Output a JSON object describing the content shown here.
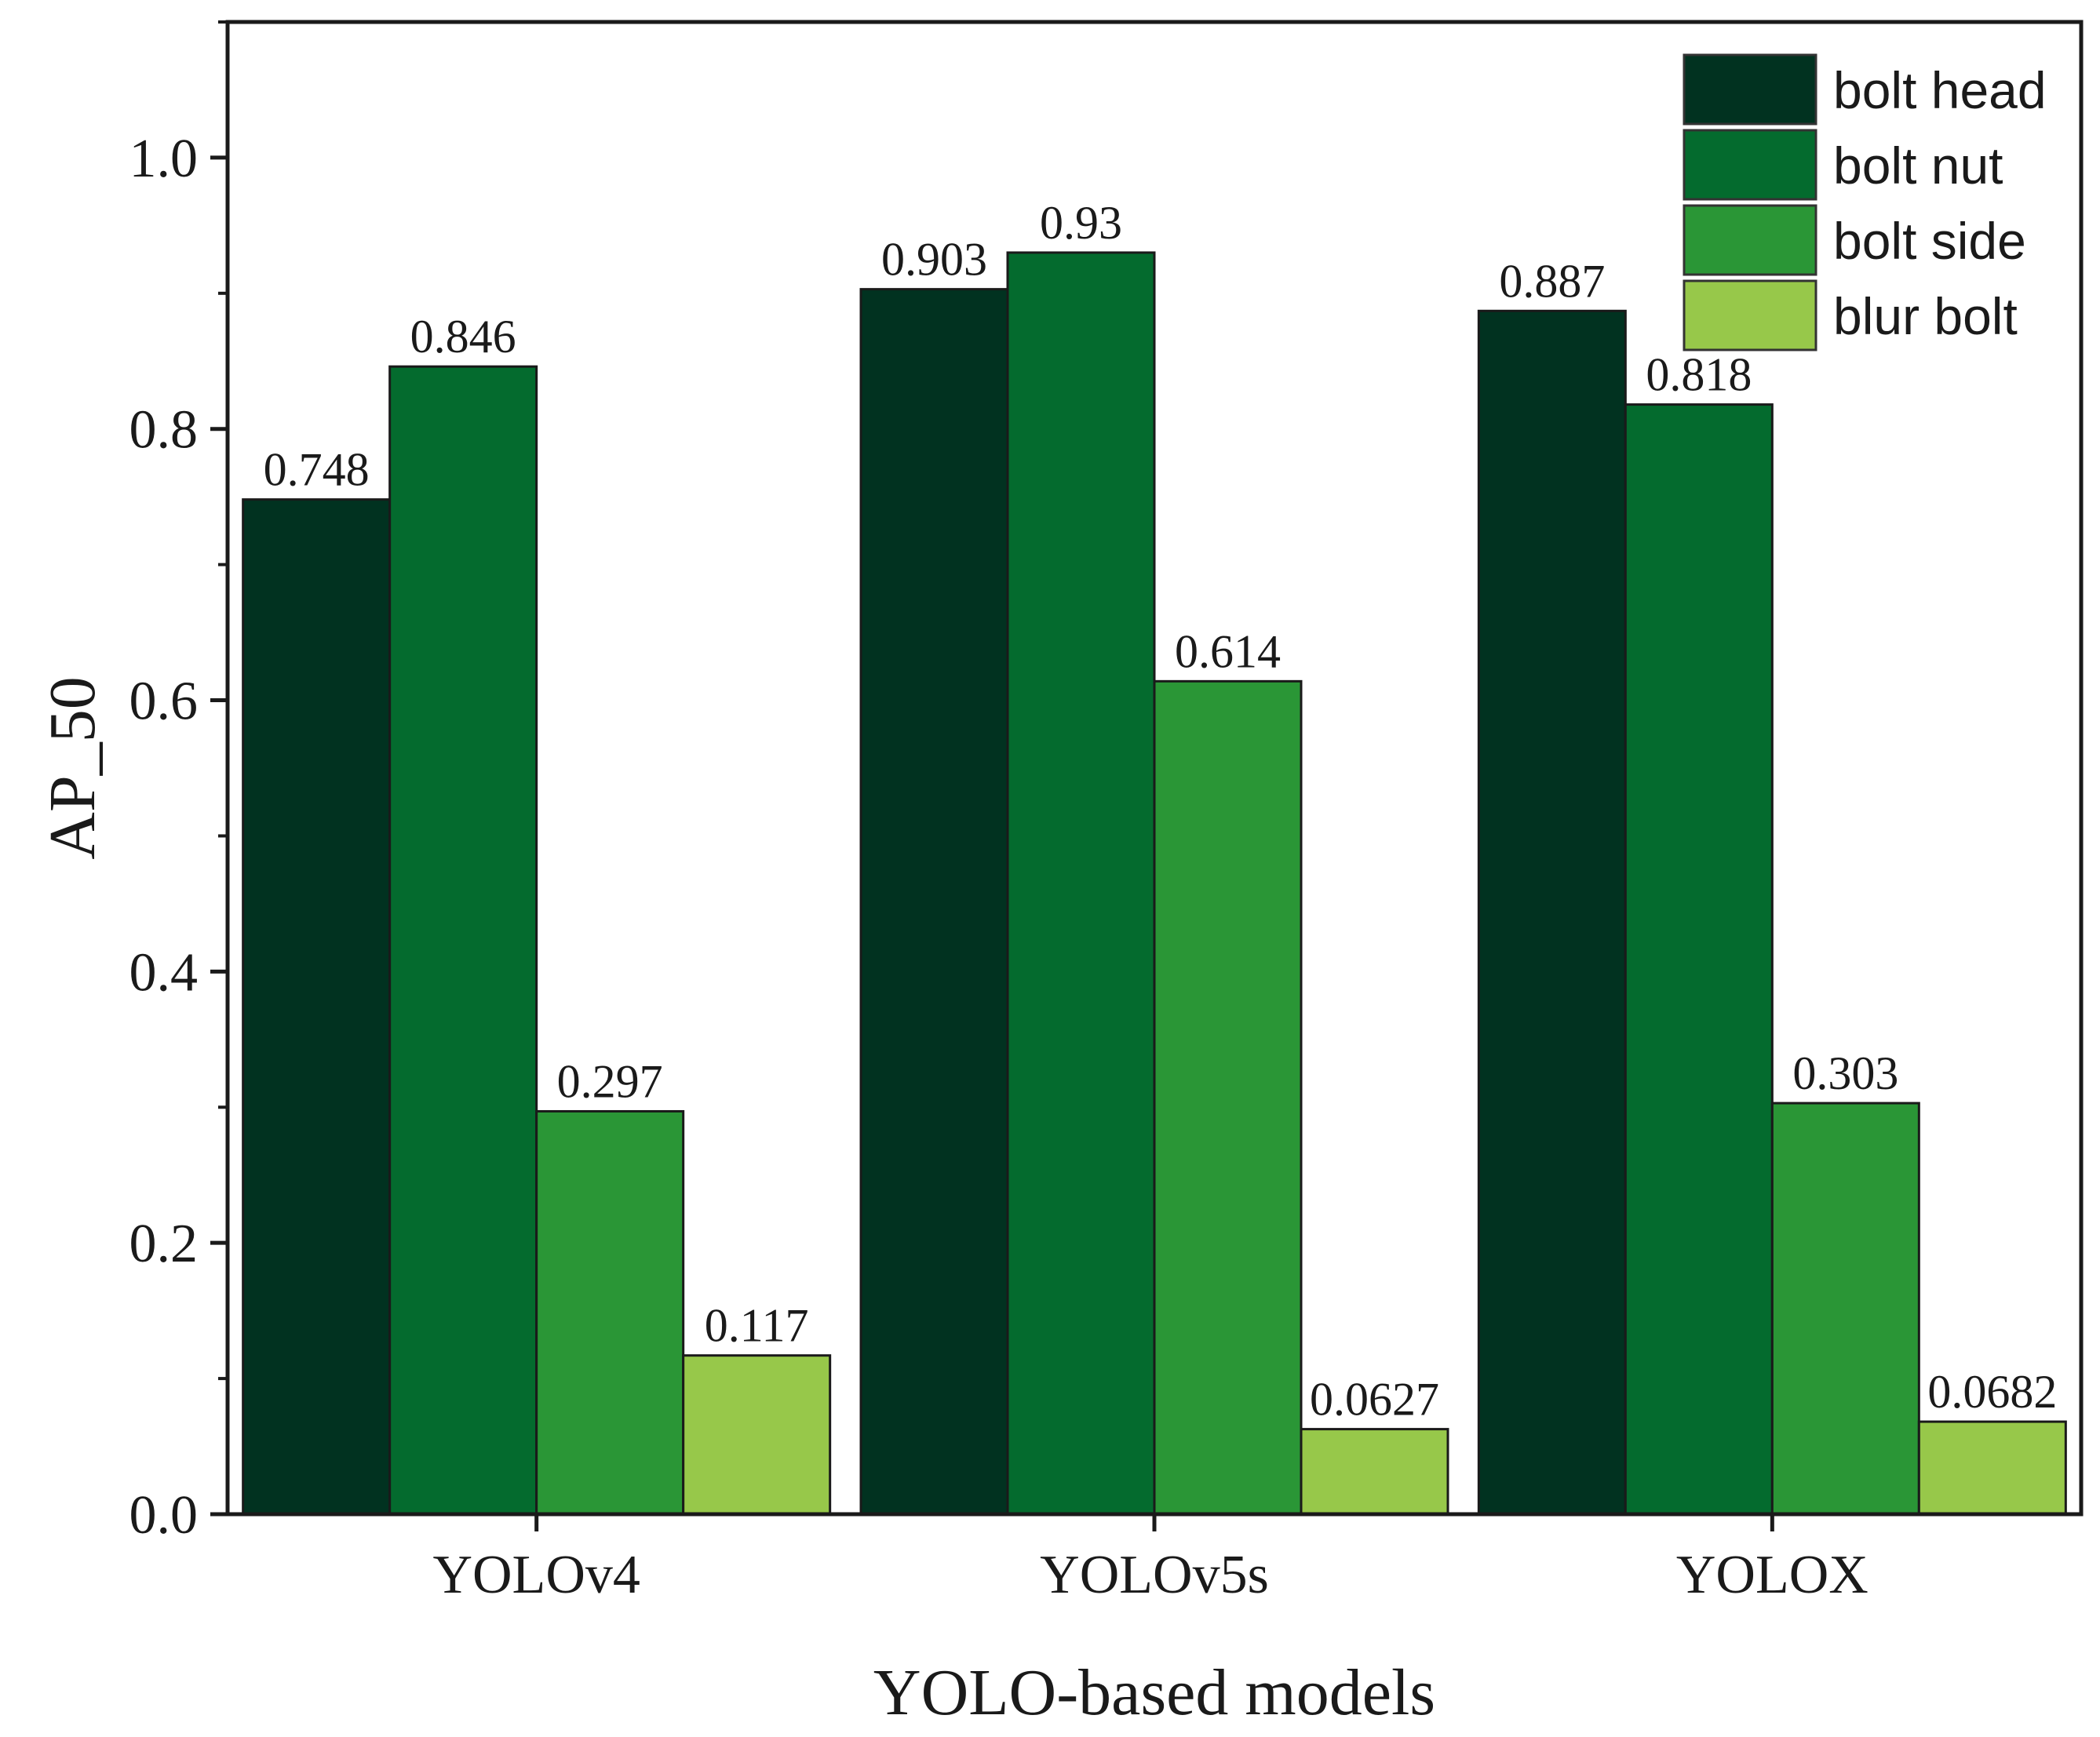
{
  "chart_data": {
    "type": "bar",
    "title": "",
    "xlabel": "YOLO-based models",
    "ylabel": "AP_50",
    "ylim": [
      0,
      1.1
    ],
    "yticks": [
      0.0,
      0.2,
      0.4,
      0.6,
      0.8,
      1.0
    ],
    "ytick_labels": [
      "0.0",
      "0.2",
      "0.4",
      "0.6",
      "0.8",
      "1.0"
    ],
    "categories": [
      "YOLOv4",
      "YOLOv5s",
      "YOLOX"
    ],
    "legend_position": "top-right",
    "grid": false,
    "series": [
      {
        "name": "bolt head",
        "color": "#013220",
        "values": [
          0.748,
          0.903,
          0.887
        ],
        "labels": [
          "0.748",
          "0.903",
          "0.887"
        ]
      },
      {
        "name": "bolt nut",
        "color": "#046b2e",
        "values": [
          0.846,
          0.93,
          0.818
        ],
        "labels": [
          "0.846",
          "0.93",
          "0.818"
        ]
      },
      {
        "name": "bolt side",
        "color": "#2a9636",
        "values": [
          0.297,
          0.614,
          0.303
        ],
        "labels": [
          "0.297",
          "0.614",
          "0.303"
        ]
      },
      {
        "name": "blur bolt",
        "color": "#97c84a",
        "values": [
          0.117,
          0.0627,
          0.0682
        ],
        "labels": [
          "0.117",
          "0.0627",
          "0.0682"
        ]
      }
    ]
  }
}
